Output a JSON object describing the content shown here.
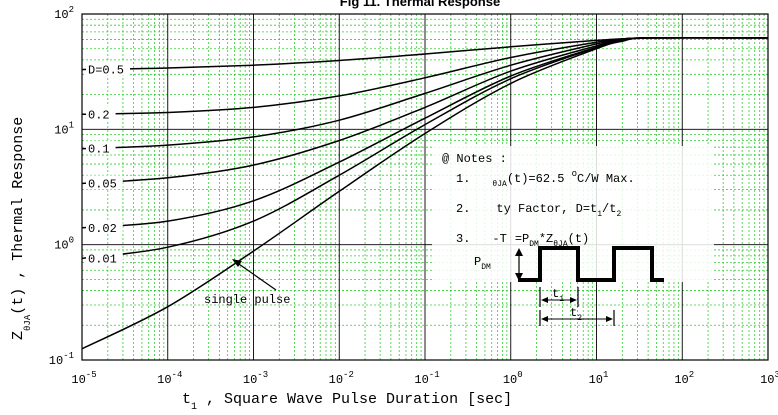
{
  "chart_data": {
    "type": "line",
    "title": "Fig 11. Thermal Response",
    "xlabel": "t",
    "xlabel_sub": "1",
    "xlabel_rest": " , Square Wave Pulse Duration  [sec]",
    "ylabel_main": "Z",
    "ylabel_sub": "θJA",
    "ylabel_rest": "(t) ,  Thermal Response",
    "x_scale": "log",
    "y_scale": "log",
    "xlim": [
      1e-05,
      1000
    ],
    "ylim": [
      0.1,
      100
    ],
    "grid": true,
    "x_ticks": [
      {
        "base": "10",
        "exp": "-5",
        "value": 1e-05
      },
      {
        "base": "10",
        "exp": "-4",
        "value": 0.0001
      },
      {
        "base": "10",
        "exp": "-3",
        "value": 0.001
      },
      {
        "base": "10",
        "exp": "-2",
        "value": 0.01
      },
      {
        "base": "10",
        "exp": "-1",
        "value": 0.1
      },
      {
        "base": "10",
        "exp": "0",
        "value": 1
      },
      {
        "base": "10",
        "exp": "1",
        "value": 10
      },
      {
        "base": "10",
        "exp": "2",
        "value": 100
      },
      {
        "base": "10",
        "exp": "3",
        "value": 1000
      }
    ],
    "y_ticks": [
      {
        "base": "10",
        "exp": "-1",
        "value": 0.1
      },
      {
        "base": "10",
        "exp": "0",
        "value": 1
      },
      {
        "base": "10",
        "exp": "1",
        "value": 10
      },
      {
        "base": "10",
        "exp": "2",
        "value": 100
      }
    ],
    "series": [
      {
        "name": "D=0.5",
        "x": [
          1e-05,
          0.0001,
          0.001,
          0.01,
          0.1,
          1,
          10,
          20,
          40,
          1000
        ],
        "y": [
          33,
          34,
          36,
          39.5,
          45,
          52,
          59,
          61,
          62,
          62
        ]
      },
      {
        "name": "0.2",
        "x": [
          1e-05,
          0.0001,
          0.001,
          0.01,
          0.1,
          1,
          10,
          20,
          40,
          1000
        ],
        "y": [
          13.5,
          14,
          15.5,
          19.5,
          28,
          42,
          57,
          60.5,
          62,
          62
        ]
      },
      {
        "name": "0.1",
        "x": [
          1e-05,
          0.0001,
          0.001,
          0.01,
          0.1,
          1,
          10,
          20,
          40,
          1000
        ],
        "y": [
          6.8,
          7.3,
          8.6,
          12,
          20.5,
          36,
          55,
          60,
          62,
          62
        ]
      },
      {
        "name": "0.05",
        "x": [
          1e-05,
          0.0001,
          0.001,
          0.01,
          0.1,
          1,
          10,
          20,
          40,
          1000
        ],
        "y": [
          3.4,
          3.8,
          4.9,
          8,
          15.5,
          32,
          53,
          59.5,
          62,
          62
        ]
      },
      {
        "name": "0.02",
        "x": [
          1e-05,
          0.0001,
          0.001,
          0.01,
          0.1,
          1,
          10,
          20,
          40,
          1000
        ],
        "y": [
          1.4,
          1.6,
          2.4,
          5.2,
          12.5,
          29,
          51.5,
          59,
          62,
          62
        ]
      },
      {
        "name": "0.01",
        "x": [
          1e-05,
          0.0001,
          0.001,
          0.01,
          0.1,
          1,
          10,
          20,
          40,
          1000
        ],
        "y": [
          0.76,
          0.95,
          1.6,
          4,
          11,
          27.5,
          51,
          58.5,
          62,
          62
        ]
      },
      {
        "name": "single pulse",
        "x": [
          1e-05,
          0.0001,
          0.001,
          0.01,
          0.1,
          1,
          10,
          20,
          40,
          1000
        ],
        "y": [
          0.125,
          0.29,
          0.88,
          2.9,
          9.2,
          25,
          50,
          58,
          62,
          62
        ]
      }
    ],
    "annotations": {
      "single_pulse_label": "single pulse",
      "notes_title": "@ Notes :",
      "note1_num": "1.",
      "note1_sub": "θJA",
      "note1_text": "(t)=62.5 ",
      "note1_deg": "o",
      "note1_unit": "C/W Max.",
      "note2_num": "2.",
      "note2_text": "ty Factor, D=t",
      "note2_s1": "1",
      "note2_slash": "/t",
      "note2_s2": "2",
      "note3_num": "3.",
      "note3_a": "-T",
      "note3_b": "=P",
      "note3_sub1": "DM",
      "note3_c": "*Z",
      "note3_sub2": "θJA",
      "note3_d": "(t)",
      "pdm_label": "P",
      "pdm_sub": "DM",
      "t1_label": "t",
      "t1_sub": "1",
      "t2_label": "t",
      "t2_sub": "2"
    }
  }
}
